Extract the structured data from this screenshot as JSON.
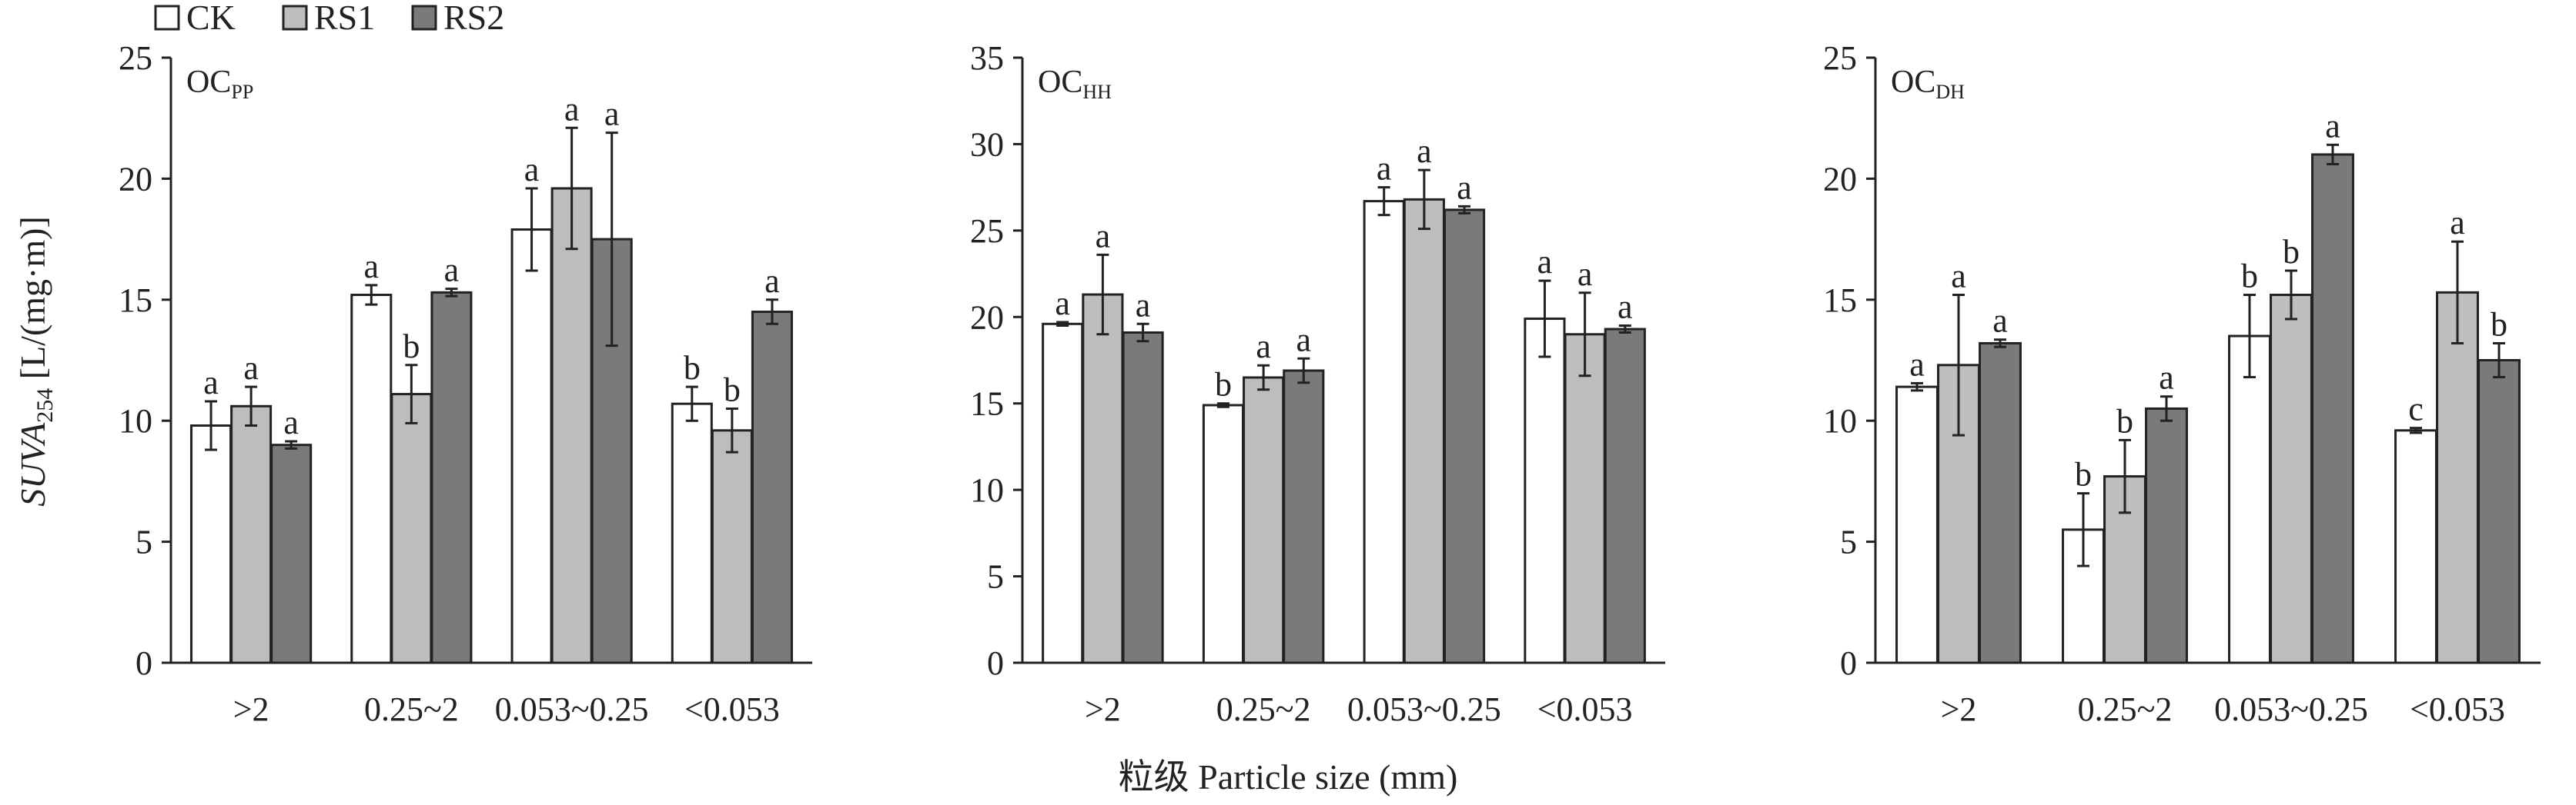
{
  "legend": [
    {
      "name": "CK",
      "color": "#ffffff"
    },
    {
      "name": "RS1",
      "color": "#bdbdbd"
    },
    {
      "name": "RS2",
      "color": "#7a7a7a"
    }
  ],
  "ylabel": {
    "main": "SUVA",
    "sub": "254",
    "rest": " [L/(mg·m)]"
  },
  "xlabel": "粒级 Particle size (mm)",
  "chart_data": [
    {
      "type": "bar",
      "panel_label": {
        "main": "OC",
        "sub": "PP"
      },
      "categories": [
        ">2",
        "0.25~2",
        "0.053~0.25",
        "<0.053"
      ],
      "ylim": [
        0,
        25
      ],
      "yticks": [
        0,
        5,
        10,
        15,
        20,
        25
      ],
      "series": [
        {
          "name": "CK",
          "values": [
            9.8,
            15.2,
            17.9,
            10.7
          ],
          "errors": [
            1.0,
            0.4,
            1.7,
            0.7
          ],
          "letters": [
            "a",
            "a",
            "a",
            "b"
          ]
        },
        {
          "name": "RS1",
          "values": [
            10.6,
            11.1,
            19.6,
            9.6
          ],
          "errors": [
            0.8,
            1.2,
            2.5,
            0.9
          ],
          "letters": [
            "a",
            "b",
            "a",
            "b"
          ]
        },
        {
          "name": "RS2",
          "values": [
            9.0,
            15.3,
            17.5,
            14.5
          ],
          "errors": [
            0.15,
            0.15,
            4.4,
            0.5
          ],
          "letters": [
            "a",
            "a",
            "a",
            "a"
          ]
        }
      ]
    },
    {
      "type": "bar",
      "panel_label": {
        "main": "OC",
        "sub": "HH"
      },
      "categories": [
        ">2",
        "0.25~2",
        "0.053~0.25",
        "<0.053"
      ],
      "ylim": [
        0,
        35
      ],
      "yticks": [
        0,
        5,
        10,
        15,
        20,
        25,
        30,
        35
      ],
      "series": [
        {
          "name": "CK",
          "values": [
            19.6,
            14.9,
            26.7,
            19.9
          ],
          "errors": [
            0.1,
            0.1,
            0.8,
            2.2
          ],
          "letters": [
            "a",
            "b",
            "a",
            "a"
          ]
        },
        {
          "name": "RS1",
          "values": [
            21.3,
            16.5,
            26.8,
            19.0
          ],
          "errors": [
            2.3,
            0.7,
            1.7,
            2.4
          ],
          "letters": [
            "a",
            "a",
            "a",
            "a"
          ]
        },
        {
          "name": "RS2",
          "values": [
            19.1,
            16.9,
            26.2,
            19.3
          ],
          "errors": [
            0.5,
            0.7,
            0.2,
            0.2
          ],
          "letters": [
            "a",
            "a",
            "a",
            "a"
          ]
        }
      ]
    },
    {
      "type": "bar",
      "panel_label": {
        "main": "OC",
        "sub": "DH"
      },
      "categories": [
        ">2",
        "0.25~2",
        "0.053~0.25",
        "<0.053"
      ],
      "ylim": [
        0,
        25
      ],
      "yticks": [
        0,
        5,
        10,
        15,
        20,
        25
      ],
      "series": [
        {
          "name": "CK",
          "values": [
            11.4,
            5.5,
            13.5,
            9.6
          ],
          "errors": [
            0.15,
            1.5,
            1.7,
            0.1
          ],
          "letters": [
            "a",
            "b",
            "b",
            "c"
          ]
        },
        {
          "name": "RS1",
          "values": [
            12.3,
            7.7,
            15.2,
            15.3
          ],
          "errors": [
            2.9,
            1.5,
            1.0,
            2.1
          ],
          "letters": [
            "a",
            "b",
            "b",
            "a"
          ]
        },
        {
          "name": "RS2",
          "values": [
            13.2,
            10.5,
            21.0,
            12.5
          ],
          "errors": [
            0.15,
            0.5,
            0.4,
            0.7
          ],
          "letters": [
            "a",
            "a",
            "a",
            "b"
          ]
        }
      ]
    }
  ]
}
